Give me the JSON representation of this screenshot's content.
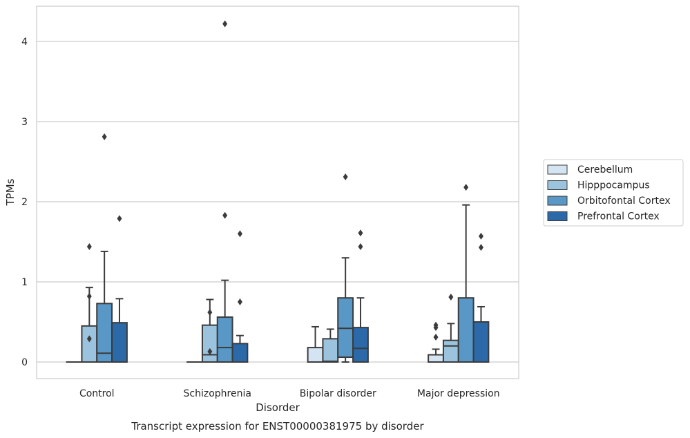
{
  "chart_data": {
    "type": "boxplot",
    "title": "Transcript expression for ENST00000381975 by disorder",
    "xlabel": "Disorder",
    "ylabel": "TPMs",
    "categories": [
      "Control",
      "Schizophrenia",
      "Bipolar disorder",
      "Major depression"
    ],
    "ylim": [
      -0.2,
      4.4
    ],
    "yticks": [
      0,
      1,
      2,
      3,
      4
    ],
    "grid": true,
    "legend_position": "right",
    "series": [
      {
        "name": "Cerebellum",
        "color": "#d4e4f2",
        "boxes": [
          {
            "min": 0,
            "q1": 0,
            "median": 0,
            "q3": 0,
            "max": 0,
            "outliers": []
          },
          {
            "min": 0,
            "q1": 0,
            "median": 0,
            "q3": 0,
            "max": 0,
            "outliers": []
          },
          {
            "min": 0,
            "q1": 0,
            "median": 0,
            "q3": 0.18,
            "max": 0.44,
            "outliers": []
          },
          {
            "min": 0,
            "q1": 0,
            "median": 0,
            "q3": 0.09,
            "max": 0.16,
            "outliers": [
              0.31,
              0.43,
              0.46
            ]
          }
        ]
      },
      {
        "name": "Hipppocampus",
        "color": "#9bc3dd",
        "boxes": [
          {
            "min": 0,
            "q1": 0,
            "median": 0,
            "q3": 0.45,
            "max": 0.93,
            "outliers": [
              0.29,
              0.82,
              1.44
            ]
          },
          {
            "min": 0,
            "q1": 0,
            "median": 0.09,
            "q3": 0.46,
            "max": 0.78,
            "outliers": [
              0.13,
              0.62
            ]
          },
          {
            "min": 0,
            "q1": 0,
            "median": 0.01,
            "q3": 0.29,
            "max": 0.41,
            "outliers": []
          },
          {
            "min": 0,
            "q1": 0,
            "median": 0.2,
            "q3": 0.27,
            "max": 0.48,
            "outliers": [
              0.81
            ]
          }
        ]
      },
      {
        "name": "Orbitofontal Cortex",
        "color": "#5897c6",
        "boxes": [
          {
            "min": 0,
            "q1": 0,
            "median": 0.11,
            "q3": 0.73,
            "max": 1.38,
            "outliers": [
              2.81
            ]
          },
          {
            "min": 0,
            "q1": 0,
            "median": 0.18,
            "q3": 0.56,
            "max": 1.02,
            "outliers": [
              1.83,
              4.22
            ]
          },
          {
            "min": 0,
            "q1": 0.06,
            "median": 0.42,
            "q3": 0.8,
            "max": 1.3,
            "outliers": [
              2.31
            ]
          },
          {
            "min": 0,
            "q1": 0,
            "median": 0,
            "q3": 0.8,
            "max": 1.96,
            "outliers": [
              2.18
            ]
          }
        ]
      },
      {
        "name": "Prefrontal Cortex",
        "color": "#2b69a9",
        "boxes": [
          {
            "min": 0,
            "q1": 0,
            "median": 0,
            "q3": 0.49,
            "max": 0.79,
            "outliers": [
              1.79
            ]
          },
          {
            "min": 0,
            "q1": 0,
            "median": 0,
            "q3": 0.23,
            "max": 0.33,
            "outliers": [
              0.75,
              1.6
            ]
          },
          {
            "min": 0,
            "q1": 0,
            "median": 0.17,
            "q3": 0.43,
            "max": 0.8,
            "outliers": [
              1.44,
              1.61
            ]
          },
          {
            "min": 0,
            "q1": 0,
            "median": 0,
            "q3": 0.5,
            "max": 0.69,
            "outliers": [
              1.43,
              1.57
            ]
          }
        ]
      }
    ]
  }
}
